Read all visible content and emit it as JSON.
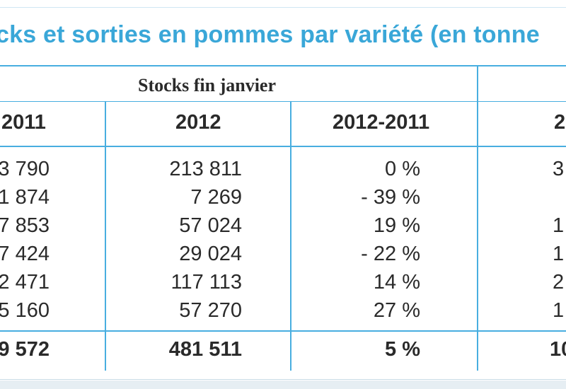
{
  "title": "cks et sorties en pommes par variété (en tonne",
  "group_header": "Stocks fin janvier",
  "columns": [
    "2011",
    "2012",
    "2012-2011",
    "2"
  ],
  "rows": [
    {
      "c2011": "3 790",
      "c2012": "213 811",
      "diff": "0 %",
      "next": "3"
    },
    {
      "c2011": "1 874",
      "c2012": "7 269",
      "diff": "- 39 %",
      "next": ""
    },
    {
      "c2011": "7 853",
      "c2012": "57 024",
      "diff": "19 %",
      "next": "1"
    },
    {
      "c2011": "7 424",
      "c2012": "29 024",
      "diff": "- 22 %",
      "next": "1"
    },
    {
      "c2011": "2 471",
      "c2012": "117 113",
      "diff": "14 %",
      "next": "2"
    },
    {
      "c2011": "5 160",
      "c2012": "57 270",
      "diff": "27 %",
      "next": "1"
    }
  ],
  "total": {
    "c2011": "9 572",
    "c2012": "481 511",
    "diff": "5 %",
    "next": "10"
  },
  "colors": {
    "accent": "#48aee0",
    "title": "#3aa7d8",
    "text": "#2a2a2a"
  }
}
